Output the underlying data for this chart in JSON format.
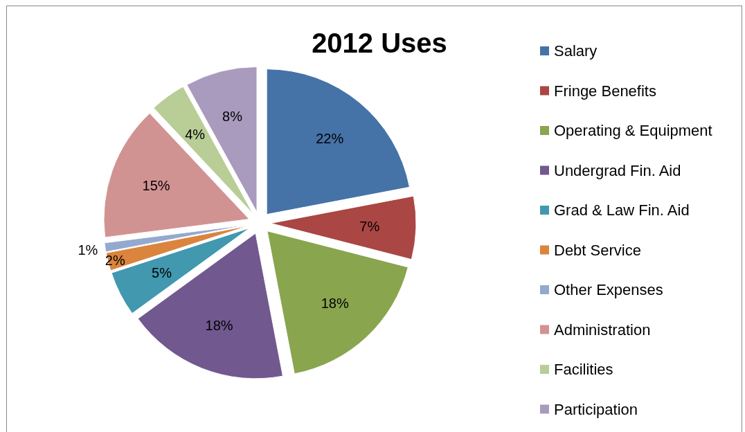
{
  "chart_data": {
    "type": "pie",
    "title": "2012 Uses",
    "categories": [
      "Salary",
      "Fringe Benefits",
      "Operating & Equipment",
      "Undergrad Fin. Aid",
      "Grad & Law Fin. Aid",
      "Debt Service",
      "Other Expenses",
      "Administration",
      "Facilities",
      "Participation"
    ],
    "values": [
      22,
      7,
      18,
      18,
      5,
      2,
      1,
      15,
      4,
      8
    ],
    "value_labels": [
      "22%",
      "7%",
      "18%",
      "18%",
      "5%",
      "2%",
      "1%",
      "15%",
      "4%",
      "8%"
    ],
    "colors": [
      "#4572a7",
      "#aa4643",
      "#89a54e",
      "#71588f",
      "#4198af",
      "#db843d",
      "#93a9cf",
      "#d19392",
      "#b9cd96",
      "#a99bbd"
    ],
    "legend": "right"
  }
}
